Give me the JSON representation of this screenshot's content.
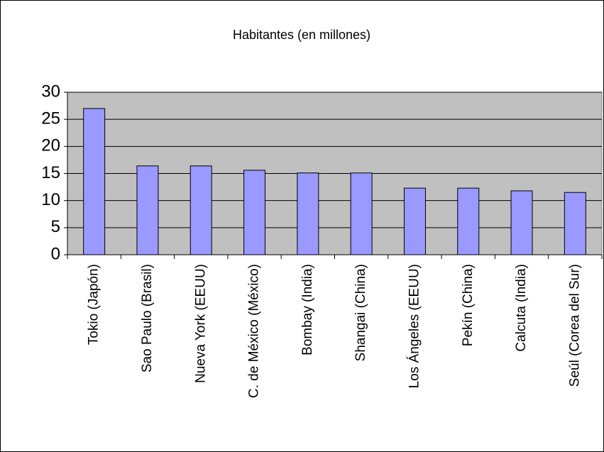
{
  "chart_data": {
    "type": "bar",
    "title": "Habitantes (en millones)",
    "categories": [
      "Tokio (Japón)",
      "Sao Paulo (Brasil)",
      "Nueva York (EEUU)",
      "C. de México (México)",
      "Bombay (India)",
      "Shangai (China)",
      "Los Ángeles (EEUU)",
      "Pekín (China)",
      "Calcuta (India)",
      "Seúl (Corea del Sur)"
    ],
    "values": [
      27,
      16.4,
      16.4,
      15.6,
      15.1,
      15.1,
      12.3,
      12.3,
      11.8,
      11.5
    ],
    "color": "#9999ff",
    "plot_background": "#c0c0c0",
    "ylim": [
      0,
      30
    ],
    "yticks": [
      0,
      5,
      10,
      15,
      20,
      25,
      30
    ],
    "grid": true
  }
}
